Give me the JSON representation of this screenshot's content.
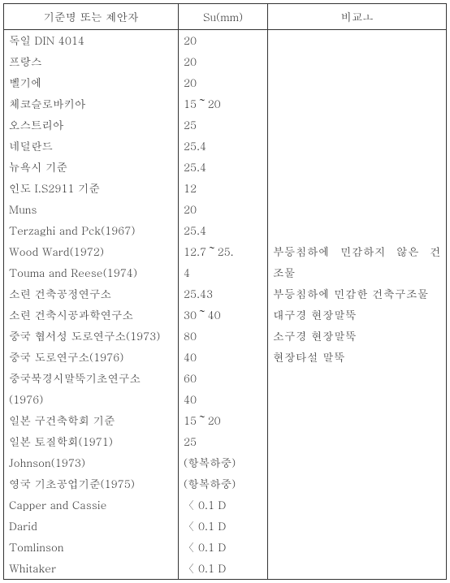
{
  "headers": {
    "col1": "기준명 또는 제안자",
    "col2": "Su(mm)",
    "col3": "비교ㅗ"
  },
  "col1_rows": [
    "독일 DIN 4014",
    "프랑스",
    "벨기에",
    "체코슬로바키아",
    "오스트리아",
    "네덜란드",
    "뉴욕시 기준",
    "인도 I.S2911 기준",
    "Muns",
    "Terzaghi and Pck(1967)",
    "Wood Ward(1972)",
    "Touma and Reese(1974)",
    "소련 건축공정연구소",
    "소련 건축시공과학연구소",
    "중국 협서성 도로연구소(1973)",
    "중국 도로연구소(1976)",
    "중국북경시말뚝기초연구소",
    "(1976)",
    "일본 구건축학회 기준",
    "일본 토질학회(1971)",
    "Johnson(1973)",
    "영국 기초공업기준(1975)",
    "Capper and Cassie",
    "Darid",
    "Tomlinson",
    "Whitaker"
  ],
  "col2_rows": [
    "20",
    "20",
    "20",
    "15～20",
    "25",
    "25.4",
    "25.4",
    "12",
    "20",
    "25.4",
    "12.7～25.",
    "4",
    "25.43",
    "30～40",
    "80",
    "40",
    "60",
    "40",
    "15～20",
    "25",
    "(항복하중)",
    "(항복하중)",
    "〈 0.1 D",
    "〈 0.1 D",
    "〈 0.1 D",
    "〈 0.1 D"
  ],
  "notes": {
    "line1": "부등침하에 민감하지 않은 건축구",
    "line2": "조물",
    "line3": "부등침하에 민감한 건축구조물",
    "line4": "대구경 현장말뚝",
    "line5": "소구경 현장말뚝",
    "line6": "현장타설 말뚝"
  }
}
